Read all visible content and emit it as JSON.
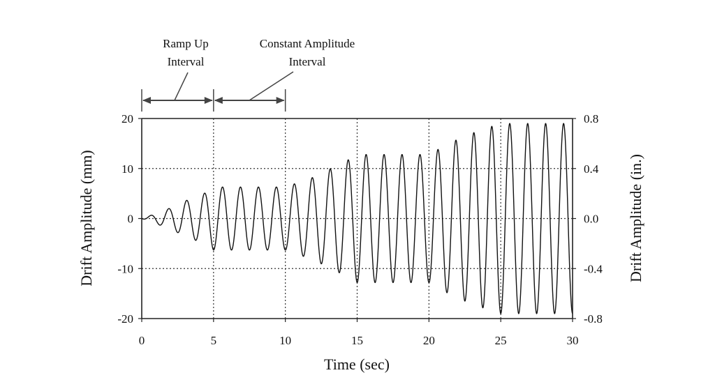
{
  "chart_data": {
    "type": "line",
    "xlabel": "Time (sec)",
    "ylabel": "Drift Amplitude (mm)",
    "y2label": "Drift Amplitude (in.)",
    "xlim": [
      0,
      30
    ],
    "ylim": [
      -20,
      20
    ],
    "y2lim": [
      -0.8,
      0.8
    ],
    "x_ticks": [
      0,
      5,
      10,
      15,
      20,
      25,
      30
    ],
    "y_ticks": [
      -20,
      -10,
      0,
      10,
      20
    ],
    "y2_ticks": [
      "-0.8",
      "-0.4",
      "0.0",
      "0.4",
      "0.8"
    ],
    "grid": "dotted",
    "series": [
      {
        "period_sec": 1.25,
        "envelope": {
          "t": [
            0,
            0.6,
            1.9,
            3.1,
            4.4,
            5.0,
            10.0,
            11.9,
            13.1,
            14.3,
            15.0,
            20.0,
            21.3,
            22.5,
            23.8,
            25.0,
            30.0
          ],
          "amp": [
            0,
            0.6,
            2.0,
            3.6,
            5.1,
            6.3,
            6.3,
            8.2,
            9.9,
            11.6,
            12.8,
            12.8,
            14.9,
            16.5,
            17.9,
            19.0,
            19.0
          ]
        }
      }
    ],
    "annotations": [
      {
        "label_line1": "Ramp Up",
        "label_line2": "Interval",
        "x_start": 0,
        "x_end": 5
      },
      {
        "label_line1": "Constant Amplitude",
        "label_line2": "Interval",
        "x_start": 5,
        "x_end": 10
      }
    ]
  }
}
